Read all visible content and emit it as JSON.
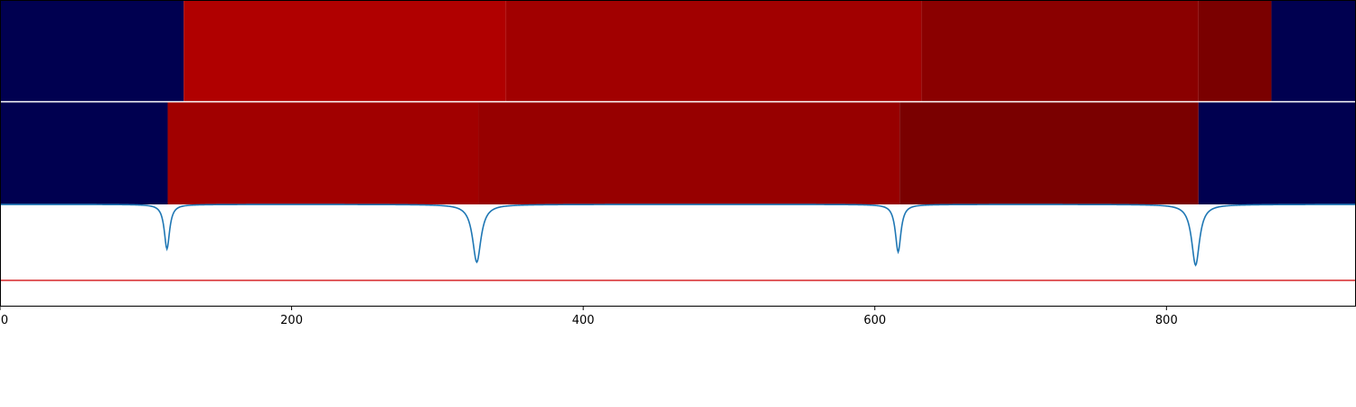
{
  "chart_data": {
    "type": "heatmap",
    "title": "",
    "xlabel": "",
    "ylabel": "",
    "xlim": [
      0,
      930
    ],
    "grid": false,
    "legend": "none",
    "colors": {
      "background": "#000050",
      "line": "#1f77b4",
      "threshold": "#d62728"
    },
    "heatmap_rows": [
      {
        "segments": [
          {
            "start": 0,
            "end": 126,
            "color": "#000050"
          },
          {
            "start": 126,
            "end": 347,
            "color": "#b00000"
          },
          {
            "start": 347,
            "end": 632,
            "color": "#a10000"
          },
          {
            "start": 632,
            "end": 822,
            "color": "#8a0000"
          },
          {
            "start": 822,
            "end": 872,
            "color": "#7a0000"
          },
          {
            "start": 872,
            "end": 930,
            "color": "#000050"
          }
        ]
      },
      {
        "segments": [
          {
            "start": 0,
            "end": 115,
            "color": "#000050"
          },
          {
            "start": 115,
            "end": 328,
            "color": "#a10000"
          },
          {
            "start": 328,
            "end": 617,
            "color": "#970000"
          },
          {
            "start": 617,
            "end": 822,
            "color": "#7a0000"
          },
          {
            "start": 822,
            "end": 930,
            "color": "#000050"
          }
        ]
      }
    ],
    "line_series": {
      "baseline": 0,
      "threshold": -0.75,
      "ylim": [
        -1.0,
        0.0
      ],
      "dips": [
        {
          "x": 114.5,
          "depth": 0.44,
          "width": 2.2
        },
        {
          "x": 327,
          "depth": 0.57,
          "width": 3.5
        },
        {
          "x": 616,
          "depth": 0.47,
          "width": 2.3
        },
        {
          "x": 820,
          "depth": 0.6,
          "width": 3.3
        }
      ]
    },
    "x_ticks": [
      {
        "value": 0,
        "label": "0"
      },
      {
        "value": 200,
        "label": "200"
      },
      {
        "value": 400,
        "label": "400"
      },
      {
        "value": 600,
        "label": "600"
      },
      {
        "value": 800,
        "label": "800"
      }
    ]
  }
}
